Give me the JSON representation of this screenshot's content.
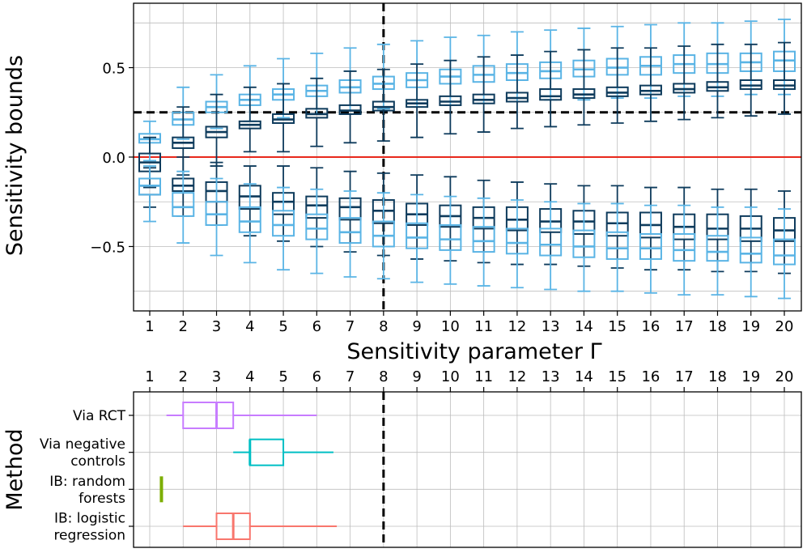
{
  "chart_data": [
    {
      "type": "boxplot",
      "xlabel": "Sensitivity parameter Γ",
      "ylabel": "Sensitivity bounds",
      "ylim": [
        -0.86,
        0.86
      ],
      "yticks": [
        -0.5,
        0.0,
        0.5
      ],
      "ytick_labels": [
        "−0.5",
        "0.0",
        "0.5"
      ],
      "categories": [
        "1",
        "2",
        "3",
        "4",
        "5",
        "6",
        "7",
        "8",
        "9",
        "10",
        "11",
        "12",
        "13",
        "14",
        "15",
        "16",
        "17",
        "18",
        "19",
        "20"
      ],
      "reference_lines": {
        "hline_red": 0.0,
        "hline_dashed": 0.25,
        "vline_dashed_gamma": 8
      },
      "colors": {
        "light": "#5AB4E5",
        "dark": "#0E3B5C",
        "zero_line": "#E8281C",
        "dashed": "#000000"
      },
      "series": [
        {
          "name": "light upper",
          "color": "#5AB4E5",
          "boxes": [
            [
              -0.02,
              0.08,
              0.1,
              0.13,
              0.2
            ],
            [
              0.1,
              0.18,
              0.21,
              0.25,
              0.39
            ],
            [
              0.16,
              0.25,
              0.28,
              0.31,
              0.46
            ],
            [
              0.2,
              0.29,
              0.32,
              0.35,
              0.51
            ],
            [
              0.22,
              0.32,
              0.35,
              0.38,
              0.55
            ],
            [
              0.24,
              0.34,
              0.37,
              0.4,
              0.58
            ],
            [
              0.26,
              0.36,
              0.39,
              0.43,
              0.61
            ],
            [
              0.27,
              0.38,
              0.41,
              0.45,
              0.63
            ],
            [
              0.28,
              0.39,
              0.43,
              0.47,
              0.65
            ],
            [
              0.29,
              0.41,
              0.45,
              0.49,
              0.67
            ],
            [
              0.3,
              0.42,
              0.46,
              0.51,
              0.68
            ],
            [
              0.31,
              0.43,
              0.47,
              0.52,
              0.7
            ],
            [
              0.32,
              0.44,
              0.48,
              0.53,
              0.71
            ],
            [
              0.32,
              0.45,
              0.49,
              0.54,
              0.72
            ],
            [
              0.33,
              0.46,
              0.5,
              0.55,
              0.73
            ],
            [
              0.33,
              0.46,
              0.51,
              0.56,
              0.74
            ],
            [
              0.34,
              0.47,
              0.52,
              0.57,
              0.75
            ],
            [
              0.34,
              0.47,
              0.52,
              0.58,
              0.75
            ],
            [
              0.35,
              0.48,
              0.53,
              0.58,
              0.76
            ],
            [
              0.35,
              0.48,
              0.54,
              0.59,
              0.77
            ]
          ]
        },
        {
          "name": "dark upper",
          "color": "#0E3B5C",
          "boxes": [
            [
              -0.17,
              -0.08,
              -0.03,
              0.02,
              0.11
            ],
            [
              -0.1,
              0.05,
              0.08,
              0.11,
              0.28
            ],
            [
              -0.05,
              0.11,
              0.14,
              0.17,
              0.35
            ],
            [
              0.03,
              0.16,
              0.18,
              0.2,
              0.39
            ],
            [
              0.03,
              0.19,
              0.21,
              0.24,
              0.41
            ],
            [
              0.06,
              0.22,
              0.24,
              0.27,
              0.44
            ],
            [
              0.08,
              0.24,
              0.26,
              0.29,
              0.48
            ],
            [
              0.09,
              0.26,
              0.28,
              0.31,
              0.49
            ],
            [
              0.11,
              0.28,
              0.3,
              0.32,
              0.52
            ],
            [
              0.13,
              0.29,
              0.31,
              0.34,
              0.54
            ],
            [
              0.14,
              0.3,
              0.32,
              0.35,
              0.56
            ],
            [
              0.16,
              0.31,
              0.33,
              0.36,
              0.57
            ],
            [
              0.17,
              0.32,
              0.34,
              0.38,
              0.59
            ],
            [
              0.18,
              0.33,
              0.35,
              0.38,
              0.6
            ],
            [
              0.19,
              0.34,
              0.36,
              0.39,
              0.61
            ],
            [
              0.2,
              0.35,
              0.37,
              0.4,
              0.61
            ],
            [
              0.21,
              0.36,
              0.38,
              0.41,
              0.62
            ],
            [
              0.22,
              0.37,
              0.39,
              0.42,
              0.63
            ],
            [
              0.23,
              0.38,
              0.4,
              0.43,
              0.63
            ],
            [
              0.24,
              0.38,
              0.4,
              0.43,
              0.64
            ]
          ]
        },
        {
          "name": "dark lower",
          "color": "#0E3B5C",
          "boxes": [
            [
              -0.28,
              -0.21,
              -0.16,
              -0.12,
              -0.06
            ],
            [
              -0.33,
              -0.19,
              -0.16,
              -0.12,
              0.0
            ],
            [
              -0.38,
              -0.25,
              -0.19,
              -0.14,
              -0.03
            ],
            [
              -0.44,
              -0.29,
              -0.22,
              -0.16,
              -0.05
            ],
            [
              -0.47,
              -0.32,
              -0.25,
              -0.2,
              -0.05
            ],
            [
              -0.5,
              -0.34,
              -0.27,
              -0.22,
              -0.06
            ],
            [
              -0.53,
              -0.35,
              -0.28,
              -0.23,
              -0.08
            ],
            [
              -0.55,
              -0.37,
              -0.3,
              -0.24,
              -0.09
            ],
            [
              -0.57,
              -0.38,
              -0.32,
              -0.26,
              -0.1
            ],
            [
              -0.58,
              -0.39,
              -0.33,
              -0.27,
              -0.11
            ],
            [
              -0.59,
              -0.4,
              -0.34,
              -0.28,
              -0.13
            ],
            [
              -0.6,
              -0.41,
              -0.35,
              -0.28,
              -0.14
            ],
            [
              -0.6,
              -0.42,
              -0.36,
              -0.29,
              -0.15
            ],
            [
              -0.61,
              -0.43,
              -0.36,
              -0.3,
              -0.16
            ],
            [
              -0.62,
              -0.44,
              -0.37,
              -0.31,
              -0.16
            ],
            [
              -0.63,
              -0.45,
              -0.38,
              -0.31,
              -0.17
            ],
            [
              -0.63,
              -0.46,
              -0.39,
              -0.32,
              -0.17
            ],
            [
              -0.64,
              -0.46,
              -0.4,
              -0.32,
              -0.18
            ],
            [
              -0.64,
              -0.47,
              -0.4,
              -0.33,
              -0.18
            ],
            [
              -0.65,
              -0.47,
              -0.41,
              -0.34,
              -0.19
            ]
          ]
        },
        {
          "name": "light lower",
          "color": "#5AB4E5",
          "boxes": [
            [
              -0.36,
              -0.21,
              -0.16,
              -0.12,
              -0.05
            ],
            [
              -0.48,
              -0.33,
              -0.28,
              -0.2,
              -0.08
            ],
            [
              -0.55,
              -0.38,
              -0.32,
              -0.25,
              -0.12
            ],
            [
              -0.59,
              -0.42,
              -0.36,
              -0.28,
              -0.15
            ],
            [
              -0.63,
              -0.44,
              -0.38,
              -0.3,
              -0.17
            ],
            [
              -0.65,
              -0.46,
              -0.4,
              -0.32,
              -0.18
            ],
            [
              -0.67,
              -0.48,
              -0.42,
              -0.34,
              -0.19
            ],
            [
              -0.68,
              -0.5,
              -0.44,
              -0.36,
              -0.2
            ],
            [
              -0.7,
              -0.51,
              -0.45,
              -0.37,
              -0.21
            ],
            [
              -0.71,
              -0.52,
              -0.46,
              -0.38,
              -0.22
            ],
            [
              -0.72,
              -0.53,
              -0.47,
              -0.39,
              -0.23
            ],
            [
              -0.73,
              -0.54,
              -0.48,
              -0.4,
              -0.24
            ],
            [
              -0.74,
              -0.55,
              -0.49,
              -0.4,
              -0.25
            ],
            [
              -0.75,
              -0.56,
              -0.5,
              -0.41,
              -0.26
            ],
            [
              -0.75,
              -0.57,
              -0.51,
              -0.42,
              -0.26
            ],
            [
              -0.76,
              -0.57,
              -0.51,
              -0.43,
              -0.27
            ],
            [
              -0.77,
              -0.58,
              -0.52,
              -0.43,
              -0.27
            ],
            [
              -0.77,
              -0.58,
              -0.53,
              -0.44,
              -0.28
            ],
            [
              -0.78,
              -0.59,
              -0.54,
              -0.45,
              -0.28
            ],
            [
              -0.79,
              -0.6,
              -0.55,
              -0.46,
              -0.29
            ]
          ]
        }
      ]
    },
    {
      "type": "horizontal_boxplot",
      "ylabel": "Method",
      "xlim": [
        0.8,
        20.5
      ],
      "xticks": [
        "1",
        "2",
        "3",
        "4",
        "5",
        "6",
        "7",
        "8",
        "9",
        "10",
        "11",
        "12",
        "13",
        "14",
        "15",
        "16",
        "17",
        "18",
        "19",
        "20"
      ],
      "vline_dashed_gamma": 8,
      "series": [
        {
          "name": "Via RCT",
          "color": "#C77CFF",
          "box": [
            1.5,
            2.0,
            3.0,
            3.5,
            6.0
          ]
        },
        {
          "name": "Via negative controls",
          "color": "#00BFC4",
          "box": [
            3.5,
            4.0,
            4.0,
            5.0,
            6.5
          ]
        },
        {
          "name": "IB: random forests",
          "color": "#7CAE00",
          "box": [
            1.35,
            1.35,
            1.35,
            1.35,
            1.35
          ]
        },
        {
          "name": "IB: logistic regression",
          "color": "#F8766D",
          "box": [
            2.0,
            3.0,
            3.5,
            4.0,
            6.6
          ]
        }
      ],
      "method_labels": [
        [
          "Via RCT"
        ],
        [
          "Via negative",
          "controls"
        ],
        [
          "IB: random",
          "forests"
        ],
        [
          "IB: logistic",
          "regression"
        ]
      ]
    }
  ]
}
